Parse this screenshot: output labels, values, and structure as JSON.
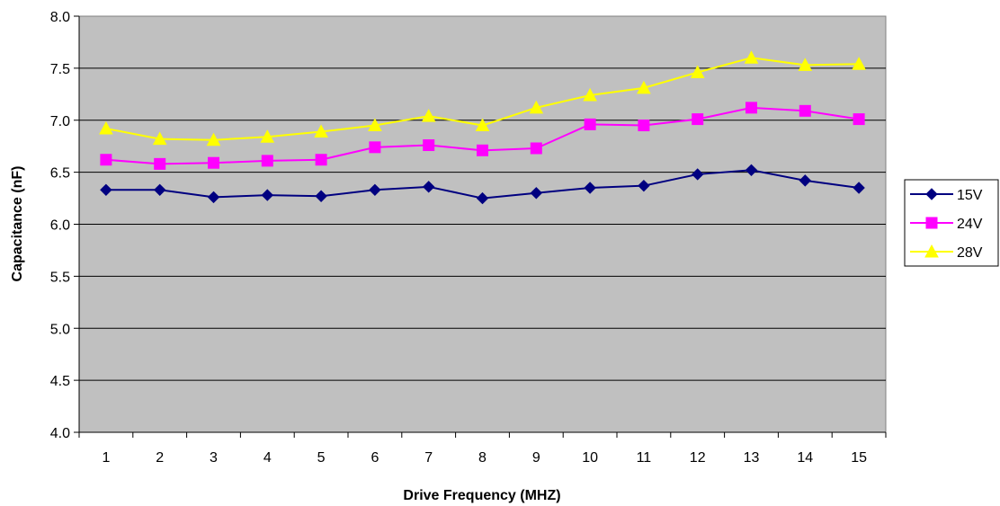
{
  "chart_data": {
    "type": "line",
    "title": "",
    "xlabel": "Drive Frequency (MHZ)",
    "ylabel": "Capacitance (nF)",
    "categories": [
      "1",
      "2",
      "3",
      "4",
      "5",
      "6",
      "7",
      "8",
      "9",
      "10",
      "11",
      "12",
      "13",
      "14",
      "15"
    ],
    "ylim": [
      4.0,
      8.0
    ],
    "yticks": [
      "4.0",
      "4.5",
      "5.0",
      "5.5",
      "6.0",
      "6.5",
      "7.0",
      "7.5",
      "8.0"
    ],
    "grid": "horizontal",
    "plot_background": "#c0c0c0",
    "legend_position": "right",
    "series": [
      {
        "name": "15V",
        "color": "#000080",
        "marker": "diamond",
        "values": [
          6.33,
          6.33,
          6.26,
          6.28,
          6.27,
          6.33,
          6.36,
          6.25,
          6.3,
          6.35,
          6.37,
          6.48,
          6.52,
          6.42,
          6.35
        ]
      },
      {
        "name": "24V",
        "color": "#ff00ff",
        "marker": "square",
        "values": [
          6.62,
          6.58,
          6.59,
          6.61,
          6.62,
          6.74,
          6.76,
          6.71,
          6.73,
          6.96,
          6.95,
          7.01,
          7.12,
          7.09,
          7.01
        ]
      },
      {
        "name": "28V",
        "color": "#ffff00",
        "marker": "triangle",
        "values": [
          6.92,
          6.82,
          6.81,
          6.84,
          6.89,
          6.95,
          7.04,
          6.95,
          7.12,
          7.24,
          7.31,
          7.46,
          7.6,
          7.53,
          7.54
        ]
      }
    ]
  }
}
